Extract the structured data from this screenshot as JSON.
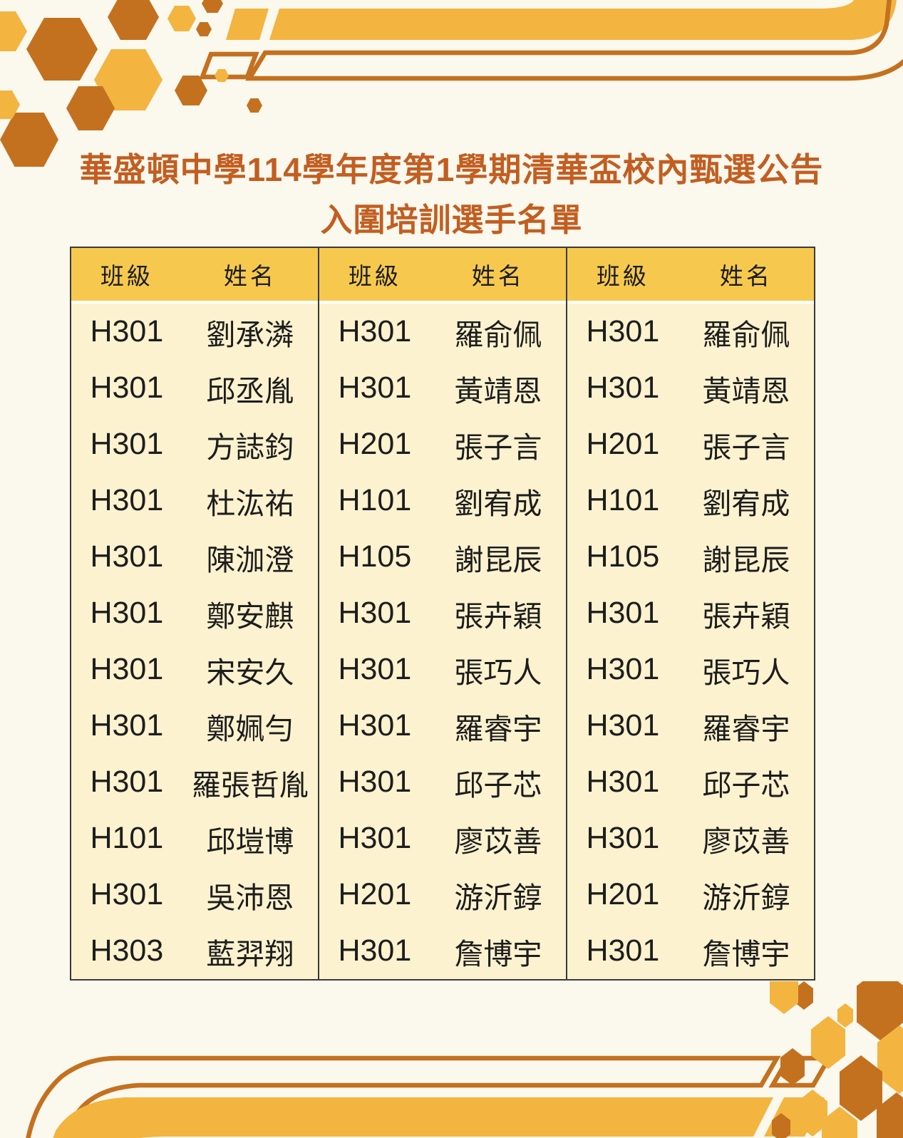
{
  "title": {
    "line1": "華盛頓中學114學年度第1學期清華盃校內甄選公告",
    "line2": "入圍培訓選手名單"
  },
  "table": {
    "header": {
      "class_label": "班級",
      "name_label": "姓名"
    },
    "columns": [
      {
        "rows": [
          {
            "class": "H301",
            "name": "劉承潾"
          },
          {
            "class": "H301",
            "name": "邱丞胤"
          },
          {
            "class": "H301",
            "name": "方誌鈞"
          },
          {
            "class": "H301",
            "name": "杜汯祐"
          },
          {
            "class": "H301",
            "name": "陳泇澄"
          },
          {
            "class": "H301",
            "name": "鄭安麒"
          },
          {
            "class": "H301",
            "name": "宋安久"
          },
          {
            "class": "H301",
            "name": "鄭姵勻"
          },
          {
            "class": "H301",
            "name": "羅張哲胤"
          },
          {
            "class": "H101",
            "name": "邱塏博"
          },
          {
            "class": "H301",
            "name": "吳沛恩"
          },
          {
            "class": "H303",
            "name": "藍羿翔"
          }
        ]
      },
      {
        "rows": [
          {
            "class": "H301",
            "name": "羅俞佩"
          },
          {
            "class": "H301",
            "name": "黃靖恩"
          },
          {
            "class": "H201",
            "name": "張子言"
          },
          {
            "class": "H101",
            "name": "劉宥成"
          },
          {
            "class": "H105",
            "name": "謝昆辰"
          },
          {
            "class": "H301",
            "name": "張卉穎"
          },
          {
            "class": "H301",
            "name": "張巧人"
          },
          {
            "class": "H301",
            "name": "羅睿宇"
          },
          {
            "class": "H301",
            "name": "邱子芯"
          },
          {
            "class": "H301",
            "name": "廖苡善"
          },
          {
            "class": "H201",
            "name": "游沂錞"
          },
          {
            "class": "H301",
            "name": "詹博宇"
          }
        ]
      },
      {
        "rows": [
          {
            "class": "H301",
            "name": "羅俞佩"
          },
          {
            "class": "H301",
            "name": "黃靖恩"
          },
          {
            "class": "H201",
            "name": "張子言"
          },
          {
            "class": "H101",
            "name": "劉宥成"
          },
          {
            "class": "H105",
            "name": "謝昆辰"
          },
          {
            "class": "H301",
            "name": "張卉穎"
          },
          {
            "class": "H301",
            "name": "張巧人"
          },
          {
            "class": "H301",
            "name": "羅睿宇"
          },
          {
            "class": "H301",
            "name": "邱子芯"
          },
          {
            "class": "H301",
            "name": "廖苡善"
          },
          {
            "class": "H201",
            "name": "游沂錞"
          },
          {
            "class": "H301",
            "name": "詹博宇"
          }
        ]
      }
    ]
  },
  "colors": {
    "cream": "#FBF8EE",
    "gold": "#F3B440",
    "dark": "#C4711F",
    "header-gold": "#F6C94E",
    "body-yellow": "#FCF2CF",
    "title": "#C25E21",
    "border": "#3A3A3A"
  }
}
